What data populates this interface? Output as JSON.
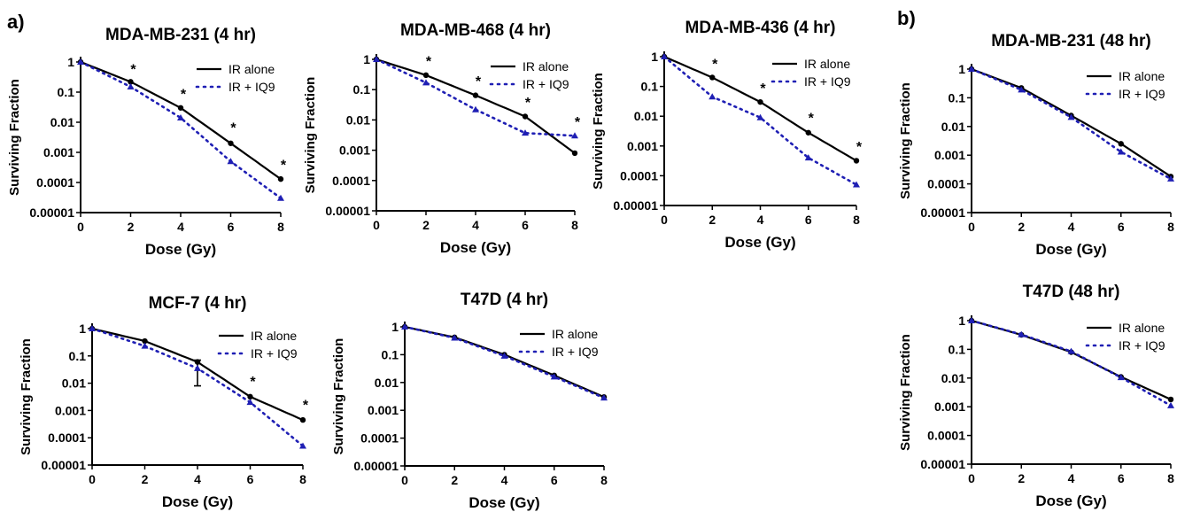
{
  "figure": {
    "panel_a": "a)",
    "panel_b": "b)"
  },
  "colors": {
    "ir_alone": "#000000",
    "ir_iq9": "#1f1fb4"
  },
  "chart_data": [
    {
      "id": "mdamb231-4",
      "type": "line",
      "title": "MDA-MB-231 (4 hr)",
      "xlabel": "Dose (Gy)",
      "ylabel": "Surviving Fraction",
      "x_ticks": [
        0,
        2,
        4,
        6,
        8
      ],
      "y_ticks": [
        "1",
        "0.1",
        "0.01",
        "0.001",
        "0.0001",
        "0.00001"
      ],
      "xlim": [
        0,
        8
      ],
      "ylim": [
        1e-05,
        1
      ],
      "yscale": "log",
      "legend": "top-right",
      "series": [
        {
          "name": "IR alone",
          "style": "solid",
          "marker": "circle",
          "x": [
            0,
            2,
            4,
            6,
            8
          ],
          "y": [
            1,
            0.22,
            0.03,
            0.002,
            0.00013
          ]
        },
        {
          "name": "IR + IQ9",
          "style": "dotted",
          "marker": "triangle",
          "x": [
            0,
            2,
            4,
            6,
            8
          ],
          "y": [
            1,
            0.15,
            0.014,
            0.0005,
            3e-05
          ]
        }
      ],
      "annotations": [
        {
          "text": "*",
          "x": 2,
          "y": 0.6
        },
        {
          "text": "*",
          "x": 4,
          "y": 0.09
        },
        {
          "text": "*",
          "x": 6,
          "y": 0.007
        },
        {
          "text": "*",
          "x": 8,
          "y": 0.0004
        }
      ]
    },
    {
      "id": "mdamb468-4",
      "type": "line",
      "title": "MDA-MB-468 (4 hr)",
      "xlabel": "Dose (Gy)",
      "ylabel": "Surviving Fraction",
      "x_ticks": [
        0,
        2,
        4,
        6,
        8
      ],
      "y_ticks": [
        "1",
        "0.1",
        "0.01",
        "0.001",
        "0.0001",
        "0.00001"
      ],
      "xlim": [
        0,
        8
      ],
      "ylim": [
        1e-05,
        1
      ],
      "yscale": "log",
      "legend": "top-right",
      "series": [
        {
          "name": "IR alone",
          "style": "solid",
          "marker": "circle",
          "x": [
            0,
            2,
            4,
            6,
            8
          ],
          "y": [
            1,
            0.3,
            0.065,
            0.013,
            0.0008
          ]
        },
        {
          "name": "IR + IQ9",
          "style": "dotted",
          "marker": "triangle",
          "x": [
            0,
            2,
            4,
            6,
            8
          ],
          "y": [
            1,
            0.17,
            0.022,
            0.0037,
            0.003
          ]
        }
      ],
      "annotations": [
        {
          "text": "*",
          "x": 2,
          "y": 0.9
        },
        {
          "text": "*",
          "x": 4,
          "y": 0.2
        },
        {
          "text": "*",
          "x": 6,
          "y": 0.04
        },
        {
          "text": "*",
          "x": 8,
          "y": 0.009
        }
      ]
    },
    {
      "id": "mdamb436-4",
      "type": "line",
      "title": "MDA-MB-436 (4 hr)",
      "xlabel": "Dose (Gy)",
      "ylabel": "Surviving Fraction",
      "x_ticks": [
        0,
        2,
        4,
        6,
        8
      ],
      "y_ticks": [
        "1",
        "0.1",
        "0.01",
        "0.001",
        "0.0001",
        "0.00001"
      ],
      "xlim": [
        0,
        8
      ],
      "ylim": [
        1e-05,
        1
      ],
      "yscale": "log",
      "legend": "top-right",
      "series": [
        {
          "name": "IR alone",
          "style": "solid",
          "marker": "circle",
          "x": [
            0,
            2,
            4,
            6,
            8
          ],
          "y": [
            1,
            0.2,
            0.03,
            0.0028,
            0.00032
          ]
        },
        {
          "name": "IR + IQ9",
          "style": "dotted",
          "marker": "triangle",
          "x": [
            0,
            2,
            4,
            6,
            8
          ],
          "y": [
            1,
            0.045,
            0.009,
            0.0004,
            5e-05
          ]
        }
      ],
      "annotations": [
        {
          "text": "*",
          "x": 2,
          "y": 0.6
        },
        {
          "text": "*",
          "x": 4,
          "y": 0.09
        },
        {
          "text": "*",
          "x": 6,
          "y": 0.009
        },
        {
          "text": "*",
          "x": 8,
          "y": 0.001
        }
      ]
    },
    {
      "id": "mdamb231-48",
      "type": "line",
      "title": "MDA-MB-231 (48 hr)",
      "xlabel": "Dose (Gy)",
      "ylabel": "Surviving Fraction",
      "x_ticks": [
        0,
        2,
        4,
        6,
        8
      ],
      "y_ticks": [
        "1",
        "0.1",
        "0.01",
        "0.001",
        "0.0001",
        "0.00001"
      ],
      "xlim": [
        0,
        8
      ],
      "ylim": [
        1e-05,
        1
      ],
      "yscale": "log",
      "legend": "top-right",
      "series": [
        {
          "name": "IR alone",
          "style": "solid",
          "marker": "circle",
          "x": [
            0,
            2,
            4,
            6,
            8
          ],
          "y": [
            1,
            0.22,
            0.024,
            0.0025,
            0.00018
          ]
        },
        {
          "name": "IR + IQ9",
          "style": "dotted",
          "marker": "triangle",
          "x": [
            0,
            2,
            4,
            6,
            8
          ],
          "y": [
            1,
            0.19,
            0.021,
            0.0013,
            0.00015
          ]
        }
      ],
      "annotations": []
    },
    {
      "id": "mcf7-4",
      "type": "line",
      "title": "MCF-7 (4 hr)",
      "xlabel": "Dose (Gy)",
      "ylabel": "Surviving Fraction",
      "x_ticks": [
        0,
        2,
        4,
        6,
        8
      ],
      "y_ticks": [
        "1",
        "0.1",
        "0.01",
        "0.001",
        "0.0001",
        "0.00001"
      ],
      "xlim": [
        0,
        8
      ],
      "ylim": [
        1e-05,
        1
      ],
      "yscale": "log",
      "legend": "top-right",
      "series": [
        {
          "name": "IR alone",
          "style": "solid",
          "marker": "circle",
          "x": [
            0,
            2,
            4,
            6,
            8
          ],
          "y": [
            1,
            0.35,
            0.06,
            0.0032,
            0.00045
          ]
        },
        {
          "name": "IR + IQ9",
          "style": "dotted",
          "marker": "triangle",
          "x": [
            0,
            2,
            4,
            6,
            8
          ],
          "y": [
            1,
            0.23,
            0.035,
            0.002,
            5e-05
          ]
        }
      ],
      "error_bars": [
        {
          "x": 4,
          "low": 0.008,
          "high": 0.07
        }
      ],
      "annotations": [
        {
          "text": "*",
          "x": 6,
          "y": 0.012
        },
        {
          "text": "*",
          "x": 8,
          "y": 0.0017
        }
      ]
    },
    {
      "id": "t47d-4",
      "type": "line",
      "title": "T47D (4 hr)",
      "xlabel": "Dose (Gy)",
      "ylabel": "Surviving Fraction",
      "x_ticks": [
        0,
        2,
        4,
        6,
        8
      ],
      "y_ticks": [
        "1",
        "0.1",
        "0.01",
        "0.001",
        "0.0001",
        "0.00001"
      ],
      "xlim": [
        0,
        8
      ],
      "ylim": [
        1e-05,
        1
      ],
      "yscale": "log",
      "legend": "top-right",
      "series": [
        {
          "name": "IR alone",
          "style": "solid",
          "marker": "circle",
          "x": [
            0,
            2,
            4,
            6,
            8
          ],
          "y": [
            1,
            0.42,
            0.1,
            0.018,
            0.003
          ]
        },
        {
          "name": "IR + IQ9",
          "style": "dotted",
          "marker": "triangle",
          "x": [
            0,
            2,
            4,
            6,
            8
          ],
          "y": [
            1,
            0.4,
            0.09,
            0.016,
            0.0028
          ]
        }
      ],
      "annotations": []
    },
    {
      "id": "t47d-48",
      "type": "line",
      "title": "T47D (48 hr)",
      "xlabel": "Dose (Gy)",
      "ylabel": "Surviving Fraction",
      "x_ticks": [
        0,
        2,
        4,
        6,
        8
      ],
      "y_ticks": [
        "1",
        "0.1",
        "0.01",
        "0.001",
        "0.0001",
        "0.00001"
      ],
      "xlim": [
        0,
        8
      ],
      "ylim": [
        1e-05,
        1
      ],
      "yscale": "log",
      "legend": "top-right",
      "series": [
        {
          "name": "IR alone",
          "style": "solid",
          "marker": "circle",
          "x": [
            0,
            2,
            4,
            6,
            8
          ],
          "y": [
            1,
            0.32,
            0.08,
            0.011,
            0.0018
          ]
        },
        {
          "name": "IR + IQ9",
          "style": "dotted",
          "marker": "triangle",
          "x": [
            0,
            2,
            4,
            6,
            8
          ],
          "y": [
            1,
            0.33,
            0.085,
            0.0105,
            0.0011
          ]
        }
      ],
      "annotations": []
    }
  ]
}
